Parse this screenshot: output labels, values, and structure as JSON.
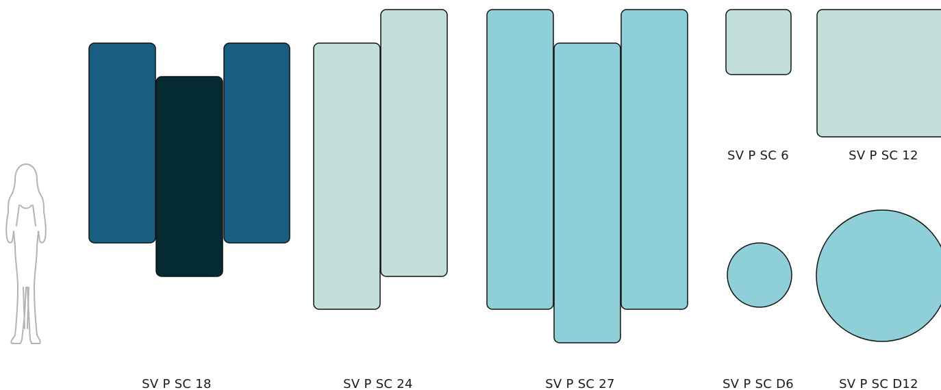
{
  "colors": {
    "dark_blue": "#185e82",
    "deep_teal": "#032b31",
    "pale_mint": "#c3dfdc",
    "aqua": "#8ecfd8",
    "outline": "#111111",
    "silhouette": "#b3b3b3"
  },
  "icons": {
    "person": "person-silhouette-icon"
  },
  "groups": {
    "sc18": {
      "label": "SV P SC 18"
    },
    "sc24": {
      "label": "SV P SC 24"
    },
    "sc27": {
      "label": "SV P SC 27"
    },
    "sc6": {
      "label": "SV P SC 6"
    },
    "sc12": {
      "label": "SV P SC 12"
    },
    "d6": {
      "label": "SV P SC D6"
    },
    "d12": {
      "label": "SV P SC D12"
    }
  }
}
